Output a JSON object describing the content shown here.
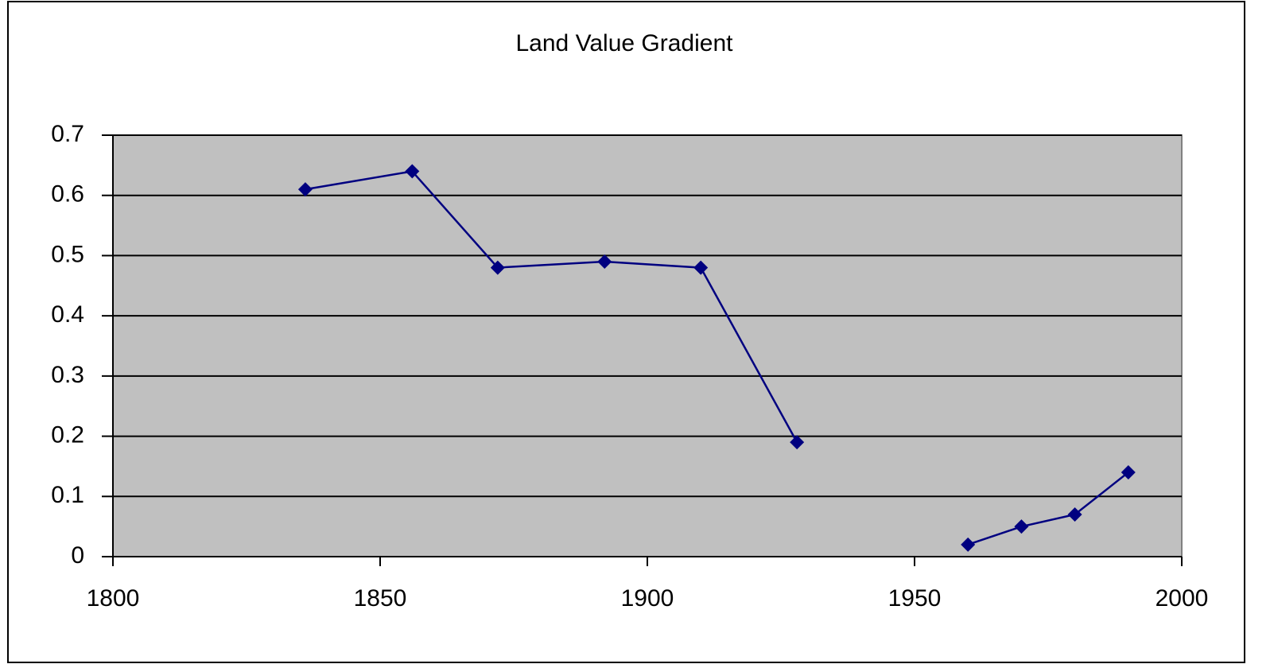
{
  "chart_data": {
    "type": "line",
    "title": "Land Value Gradient",
    "x": [
      1836,
      1856,
      1872,
      1892,
      1910,
      1928,
      null,
      1960,
      1970,
      1980,
      1990
    ],
    "series": [
      {
        "color": "#000080",
        "values": [
          0.61,
          0.64,
          0.48,
          0.49,
          0.48,
          0.19,
          null,
          0.02,
          0.05,
          0.07,
          0.14
        ]
      }
    ],
    "xlim": [
      1800,
      2000
    ],
    "xticks": [
      1800,
      1850,
      1900,
      1950,
      2000
    ],
    "ylim": [
      0,
      0.7
    ],
    "yticks": [
      0,
      0.1,
      0.2,
      0.3,
      0.4,
      0.5,
      0.6,
      0.7
    ],
    "grid": true,
    "plot_background": "#c0c0c0"
  }
}
